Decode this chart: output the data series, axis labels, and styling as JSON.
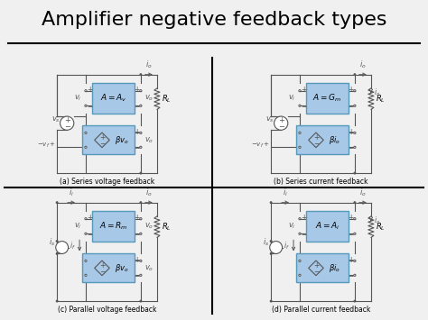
{
  "title": "Amplifier negative feedback types",
  "title_fontsize": 16,
  "bg_color": "#f0f0f0",
  "box_color": "#a8c8e8",
  "box_edge": "#5599bb",
  "line_color": "#555555",
  "text_color": "#000000",
  "captions": [
    "(a) Series voltage feedback",
    "(b) Series current feedback",
    "(c) Parallel voltage feedback",
    "(d) Parallel current feedback"
  ],
  "amp_labels": [
    "A = A_v",
    "A = G_m",
    "A = R_m",
    "A = A_i"
  ],
  "beta_labels_a": [
    "\\u03b2v_o",
    "\\u03b2i_o",
    "\\u03b2v_o",
    "\\u03b2i_o"
  ],
  "grid_color": "#000000",
  "resistor_color": "#888888"
}
